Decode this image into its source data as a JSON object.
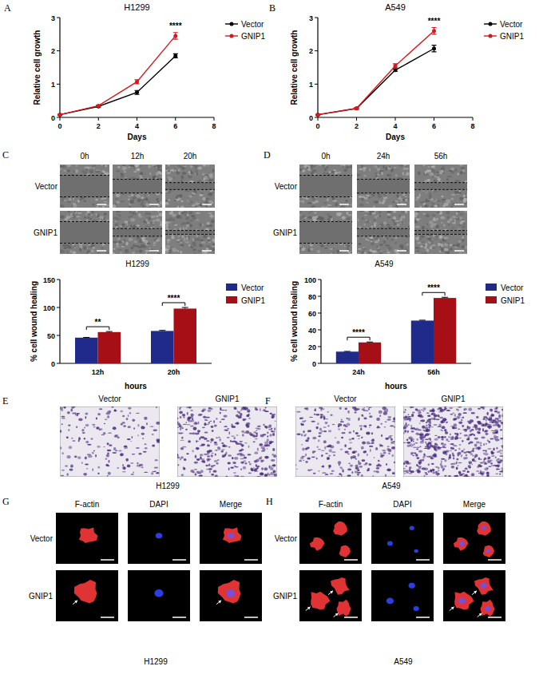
{
  "panel_letters": [
    "A",
    "B",
    "C",
    "D",
    "E",
    "F",
    "G",
    "H"
  ],
  "chart_data": [
    {
      "type": "line",
      "title": "H1299",
      "x_label": "Days",
      "y_label": "Relative cell growth",
      "x": [
        0,
        2,
        4,
        6
      ],
      "xlim": [
        0,
        8
      ],
      "xticks": [
        0,
        2,
        4,
        6,
        8
      ],
      "ylim": [
        0,
        3
      ],
      "yticks": [
        0,
        1,
        2,
        3
      ],
      "grid": false,
      "legend": "right",
      "marker": "circle",
      "series": [
        {
          "name": "Vector",
          "color": "#000000",
          "values": [
            0.08,
            0.33,
            0.75,
            1.85
          ],
          "errors": [
            0.01,
            0.02,
            0.06,
            0.06
          ]
        },
        {
          "name": "GNIP1",
          "color": "#d7191c",
          "values": [
            0.08,
            0.35,
            1.07,
            2.45
          ],
          "errors": [
            0.01,
            0.02,
            0.06,
            0.1
          ]
        }
      ],
      "annotations": [
        {
          "text": "****",
          "x": 6
        }
      ]
    },
    {
      "type": "line",
      "title": "A549",
      "x_label": "Days",
      "y_label": "Relative cell growth",
      "x": [
        0,
        2,
        4,
        6
      ],
      "xlim": [
        0,
        8
      ],
      "xticks": [
        0,
        2,
        4,
        6,
        8
      ],
      "ylim": [
        0,
        3
      ],
      "yticks": [
        0,
        1,
        2,
        3
      ],
      "grid": false,
      "legend": "right",
      "marker": "circle",
      "series": [
        {
          "name": "Vector",
          "color": "#000000",
          "values": [
            0.08,
            0.27,
            1.42,
            2.07
          ],
          "errors": [
            0.01,
            0.02,
            0.04,
            0.1
          ]
        },
        {
          "name": "GNIP1",
          "color": "#d7191c",
          "values": [
            0.08,
            0.27,
            1.55,
            2.6
          ],
          "errors": [
            0.01,
            0.02,
            0.06,
            0.1
          ]
        }
      ],
      "annotations": [
        {
          "text": "****",
          "x": 6
        }
      ]
    },
    {
      "type": "bar",
      "x_label": "hours",
      "y_label": "% cell wound healing",
      "categories": [
        "12h",
        "20h"
      ],
      "ylim": [
        0,
        150
      ],
      "yticks": [
        0,
        50,
        100,
        150
      ],
      "grid": false,
      "legend": "right",
      "series": [
        {
          "name": "Vector",
          "color": "#1f2a8a",
          "values": [
            46,
            58
          ],
          "errors": [
            0.5,
            1
          ]
        },
        {
          "name": "GNIP1",
          "color": "#a50f15",
          "values": [
            56,
            98
          ],
          "errors": [
            1,
            2
          ]
        }
      ],
      "annotations": [
        {
          "text": "**",
          "category": "12h"
        },
        {
          "text": "****",
          "category": "20h"
        }
      ]
    },
    {
      "type": "bar",
      "x_label": "hours",
      "y_label": "% cell wound healing",
      "categories": [
        "24h",
        "56h"
      ],
      "ylim": [
        0,
        100
      ],
      "yticks": [
        0,
        20,
        40,
        60,
        80,
        100
      ],
      "grid": false,
      "legend": "right",
      "series": [
        {
          "name": "Vector",
          "color": "#1f2a8a",
          "values": [
            14,
            51
          ],
          "errors": [
            0.3,
            0.5
          ]
        },
        {
          "name": "GNIP1",
          "color": "#a50f15",
          "values": [
            25,
            78
          ],
          "errors": [
            0.5,
            0.8
          ]
        }
      ],
      "annotations": [
        {
          "text": "****",
          "category": "24h"
        },
        {
          "text": "****",
          "category": "56h"
        }
      ]
    }
  ],
  "images": [
    {
      "columns": [
        "0h",
        "12h",
        "20h"
      ],
      "rows": [
        "Vector",
        "GNIP1"
      ],
      "caption": "H1299"
    },
    {
      "columns": [
        "0h",
        "24h",
        "56h"
      ],
      "rows": [
        "Vector",
        "GNIP1"
      ],
      "caption": "A549"
    },
    {
      "columns": [
        "Vector",
        "GNIP1"
      ],
      "caption": "H1299"
    },
    {
      "columns": [
        "Vector",
        "GNIP1"
      ],
      "caption": "A549"
    },
    {
      "columns": [
        "F-actin",
        "DAPI",
        "Merge"
      ],
      "rows": [
        "Vector",
        "GNIP1"
      ],
      "caption": "H1299"
    },
    {
      "columns": [
        "F-actin",
        "DAPI",
        "Merge"
      ],
      "rows": [
        "Vector",
        "GNIP1"
      ],
      "caption": "A549"
    }
  ]
}
